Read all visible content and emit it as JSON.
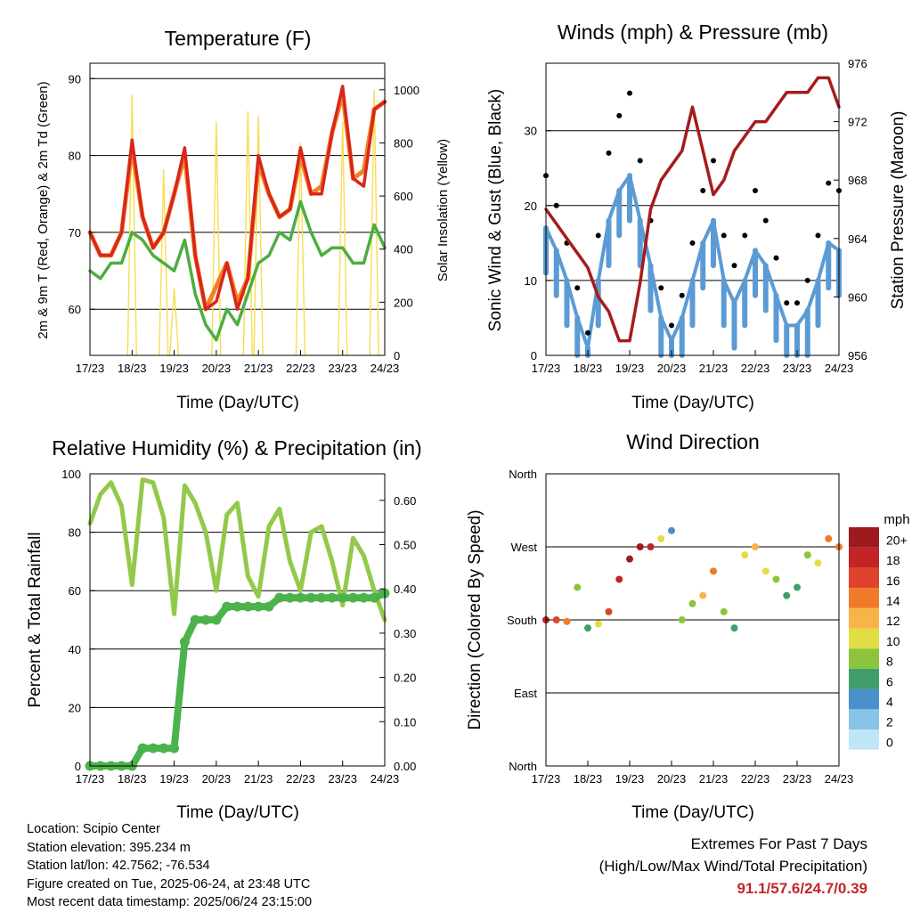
{
  "x_ticks": [
    "17/23",
    "18/23",
    "19/23",
    "20/23",
    "21/23",
    "22/23",
    "23/23",
    "24/23"
  ],
  "x_axis_label": "Time (Day/UTC)",
  "temperature_panel": {
    "title": "Temperature (F)",
    "left_label": "2m & 9m T (Red, Orange) & 2m Td (Green)",
    "right_label": "Solar Insolation (Yellow)",
    "left_ticks": [
      "60",
      "70",
      "80",
      "90"
    ],
    "right_ticks": [
      "0",
      "200",
      "400",
      "600",
      "800",
      "1000"
    ]
  },
  "wind_panel": {
    "title": "Winds (mph) & Pressure (mb)",
    "left_label": "Sonic Wind & Gust (Blue, Black)",
    "right_label": "Station Pressure (Maroon)",
    "left_ticks": [
      "0",
      "10",
      "20",
      "30"
    ],
    "right_ticks": [
      "956",
      "960",
      "964",
      "968",
      "972",
      "976"
    ]
  },
  "humidity_panel": {
    "title": "Relative Humidity (%) & Precipitation (in)",
    "left_label": "Percent & Total Rainfall",
    "left_ticks": [
      "0",
      "20",
      "40",
      "60",
      "80",
      "100"
    ],
    "right_ticks": [
      "0.00",
      "0.10",
      "0.20",
      "0.30",
      "0.40",
      "0.50",
      "0.60"
    ]
  },
  "direction_panel": {
    "title": "Wind Direction",
    "left_label": "Direction (Colored By Speed)",
    "left_ticks": [
      "North",
      "East",
      "South",
      "West",
      "North"
    ],
    "colorbar_title": "mph",
    "colorbar_labels": [
      "0",
      "2",
      "4",
      "6",
      "8",
      "10",
      "12",
      "14",
      "16",
      "18",
      "20+"
    ],
    "colorbar_colors": [
      "#bfe6f7",
      "#87c3e8",
      "#4a90c9",
      "#3f9e6c",
      "#8cc43f",
      "#e3dd45",
      "#f9b449",
      "#f07a2a",
      "#e0432b",
      "#c22427",
      "#9e1a1d"
    ]
  },
  "footer": {
    "location": "Location: Scipio Center",
    "elevation": "Station elevation: 395.234 m",
    "latlon": "Station lat/lon: 42.7562; -76.534",
    "created": "Figure created on Tue, 2025-06-24, at 23:48 UTC",
    "recent": "Most recent data timestamp: 2025/06/24 23:15:00",
    "extremes_title": "Extremes For Past 7 Days",
    "extremes_subtitle": "(High/Low/Max Wind/Total Precipitation)",
    "extremes_value": "91.1/57.6/24.7/0.39"
  },
  "colors": {
    "temp_2m": "#d7261e",
    "temp_9m": "#f58220",
    "dewpoint": "#4cae3f",
    "solar": "#f7dd52",
    "wind": "#5b9bd5",
    "gust": "#000000",
    "pressure": "#a51c1c",
    "humidity": "#92c94a",
    "rain": "#4cb34c"
  },
  "chart_data": [
    {
      "type": "line",
      "title": "Temperature (F)",
      "xlabel": "Time (Day/UTC)",
      "ylabel": "2m & 9m T (Red, Orange) & 2m Td (Green)",
      "y2label": "Solar Insolation (Yellow)",
      "x": [
        "17/23",
        "18/06",
        "18/12",
        "18/18",
        "18/23",
        "19/06",
        "19/12",
        "19/18",
        "19/23",
        "20/06",
        "20/12",
        "20/18",
        "20/23",
        "21/06",
        "21/12",
        "21/18",
        "21/23",
        "22/06",
        "22/12",
        "22/18",
        "22/23",
        "23/06",
        "23/12",
        "23/18",
        "23/23",
        "24/06",
        "24/12",
        "24/18",
        "24/23"
      ],
      "ylim": [
        54,
        92
      ],
      "y2lim": [
        0,
        1100
      ],
      "series": [
        {
          "name": "2m T",
          "values": [
            70,
            67,
            67,
            70,
            82,
            72,
            68,
            70,
            75,
            81,
            67,
            60,
            61,
            66,
            60,
            64,
            80,
            75,
            72,
            73,
            81,
            75,
            75,
            83,
            89,
            77,
            76,
            86,
            87
          ]
        },
        {
          "name": "9m T",
          "values": [
            70,
            67,
            67,
            70,
            81,
            72,
            68,
            70,
            75,
            80,
            67,
            60,
            63,
            66,
            61,
            64,
            79,
            75,
            72,
            73,
            80,
            75,
            76,
            83,
            88,
            77,
            78,
            86,
            87
          ]
        },
        {
          "name": "2m Td",
          "values": [
            65,
            64,
            66,
            66,
            70,
            69,
            67,
            66,
            65,
            69,
            62,
            58,
            56,
            60,
            58,
            62,
            66,
            67,
            70,
            69,
            74,
            70,
            67,
            68,
            68,
            66,
            66,
            71,
            68
          ]
        },
        {
          "name": "Solar Insolation",
          "values": [
            0,
            0,
            0,
            0,
            980,
            0,
            0,
            700,
            250,
            0,
            0,
            0,
            880,
            0,
            0,
            920,
            900,
            0,
            0,
            0,
            800,
            0,
            0,
            0,
            880,
            0,
            0,
            1000,
            0
          ]
        }
      ]
    },
    {
      "type": "scatter",
      "title": "Winds (mph) & Pressure (mb)",
      "xlabel": "Time (Day/UTC)",
      "ylabel": "Sonic Wind & Gust (Blue, Black)",
      "y2label": "Station Pressure (Maroon)",
      "x": [
        "17/23",
        "18/06",
        "18/12",
        "18/18",
        "18/23",
        "19/06",
        "19/12",
        "19/18",
        "19/23",
        "20/06",
        "20/12",
        "20/18",
        "20/23",
        "21/06",
        "21/12",
        "21/18",
        "21/23",
        "22/06",
        "22/12",
        "22/18",
        "22/23",
        "23/06",
        "23/12",
        "23/18",
        "23/23",
        "24/06",
        "24/12",
        "24/18",
        "24/23"
      ],
      "ylim": [
        0,
        39
      ],
      "y2lim": [
        956,
        976
      ],
      "series": [
        {
          "name": "Sonic Wind",
          "values": [
            17,
            14,
            10,
            5,
            1,
            10,
            18,
            22,
            24,
            18,
            12,
            5,
            2,
            5,
            10,
            15,
            18,
            10,
            7,
            10,
            14,
            12,
            8,
            4,
            4,
            6,
            10,
            15,
            14
          ]
        },
        {
          "name": "Gust",
          "values": [
            24,
            20,
            15,
            9,
            3,
            16,
            27,
            32,
            35,
            26,
            18,
            9,
            4,
            8,
            15,
            22,
            26,
            16,
            12,
            16,
            22,
            18,
            13,
            7,
            7,
            10,
            16,
            23,
            22
          ]
        },
        {
          "name": "Station Pressure",
          "values": [
            966,
            965,
            964,
            963,
            962,
            960,
            959,
            957,
            957,
            961,
            966,
            968,
            969,
            970,
            973,
            970,
            967,
            968,
            970,
            971,
            972,
            972,
            973,
            974,
            974,
            974,
            975,
            975,
            973
          ]
        }
      ]
    },
    {
      "type": "line",
      "title": "Relative Humidity (%) & Precipitation (in)",
      "xlabel": "Time (Day/UTC)",
      "ylabel": "Percent & Total Rainfall",
      "x": [
        "17/23",
        "18/06",
        "18/12",
        "18/18",
        "18/23",
        "19/06",
        "19/12",
        "19/18",
        "19/23",
        "20/06",
        "20/12",
        "20/18",
        "20/23",
        "21/06",
        "21/12",
        "21/18",
        "21/23",
        "22/06",
        "22/12",
        "22/18",
        "22/23",
        "23/06",
        "23/12",
        "23/18",
        "23/23",
        "24/06",
        "24/12",
        "24/18",
        "24/23"
      ],
      "ylim": [
        0,
        100
      ],
      "y2lim": [
        0,
        0.66
      ],
      "series": [
        {
          "name": "Relative Humidity",
          "values": [
            83,
            93,
            97,
            89,
            62,
            98,
            97,
            85,
            52,
            96,
            90,
            80,
            60,
            86,
            90,
            65,
            58,
            82,
            88,
            70,
            60,
            80,
            82,
            70,
            55,
            78,
            72,
            60,
            50
          ]
        },
        {
          "name": "Total Precipitation",
          "values": [
            0,
            0,
            0,
            0,
            0.0,
            0.04,
            0.04,
            0.04,
            0.04,
            0.28,
            0.33,
            0.33,
            0.33,
            0.36,
            0.36,
            0.36,
            0.36,
            0.36,
            0.38,
            0.38,
            0.38,
            0.38,
            0.38,
            0.38,
            0.38,
            0.38,
            0.38,
            0.38,
            0.39
          ]
        }
      ]
    },
    {
      "type": "scatter",
      "title": "Wind Direction",
      "xlabel": "Time (Day/UTC)",
      "ylabel": "Direction (Colored By Speed)",
      "x": [
        "17/23",
        "18/06",
        "18/12",
        "18/18",
        "18/23",
        "19/06",
        "19/12",
        "19/18",
        "19/23",
        "20/06",
        "20/12",
        "20/18",
        "20/23",
        "21/06",
        "21/12",
        "21/18",
        "21/23",
        "22/06",
        "22/12",
        "22/18",
        "22/23",
        "23/06",
        "23/12",
        "23/18",
        "23/23",
        "24/06",
        "24/12",
        "24/18",
        "24/23"
      ],
      "ylim": [
        0,
        360
      ],
      "series": [
        {
          "name": "Direction (deg)",
          "values": [
            180,
            180,
            178,
            220,
            170,
            175,
            190,
            230,
            255,
            270,
            270,
            280,
            290,
            180,
            200,
            210,
            240,
            190,
            170,
            260,
            270,
            240,
            230,
            210,
            220,
            260,
            250,
            280,
            270
          ]
        },
        {
          "name": "Speed (mph)",
          "values": [
            17,
            16,
            14,
            8,
            5,
            10,
            16,
            18,
            20,
            20,
            18,
            10,
            4,
            8,
            8,
            12,
            14,
            8,
            6,
            10,
            12,
            10,
            8,
            5,
            5,
            8,
            10,
            14,
            14
          ]
        }
      ]
    }
  ]
}
